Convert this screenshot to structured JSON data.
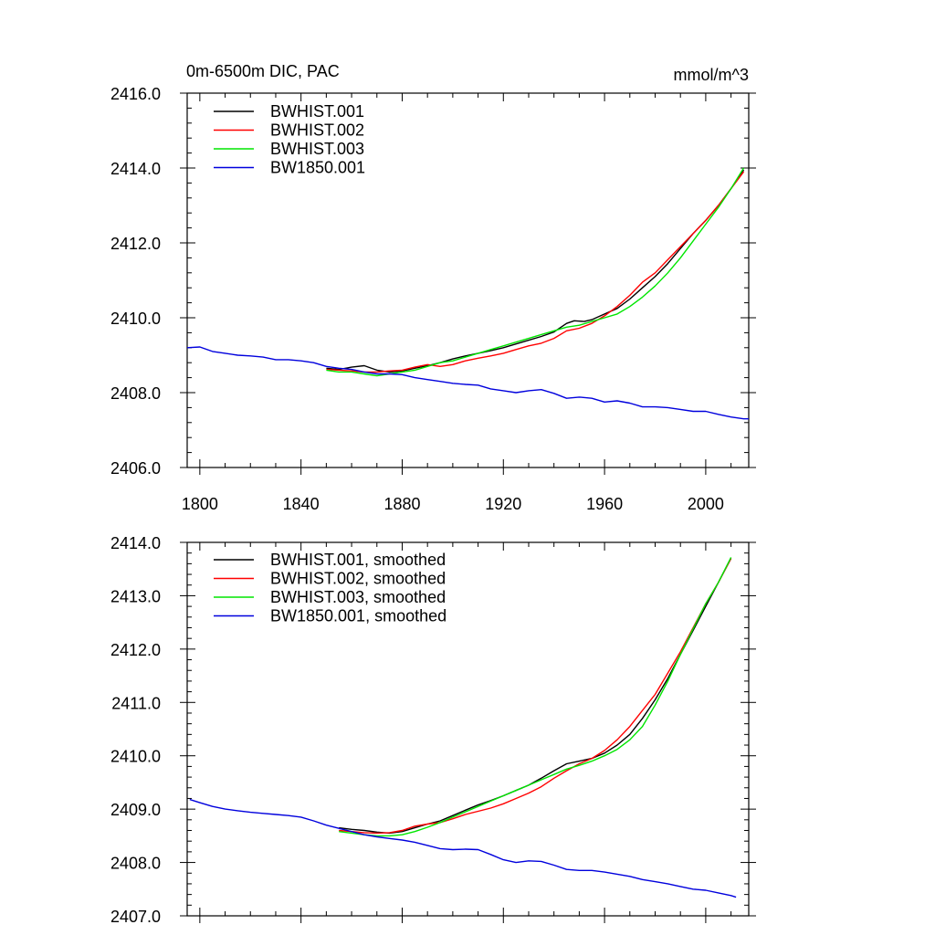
{
  "header": {
    "title": "0m-6500m DIC, PAC",
    "units": "mmol/m^3"
  },
  "chart_data": [
    {
      "type": "line",
      "title": "0m-6500m DIC, PAC",
      "units": "mmol/m^3",
      "xlim": [
        1795,
        2017
      ],
      "ylim": [
        2406.0,
        2416.0
      ],
      "xticks": [
        1800,
        1840,
        1880,
        1920,
        1960,
        2000
      ],
      "xtick_labels": [
        "1800",
        "1840",
        "1880",
        "1920",
        "1960",
        "2000"
      ],
      "yticks": [
        2406,
        2408,
        2410,
        2412,
        2414,
        2416
      ],
      "ytick_labels": [
        "2406.0",
        "2408.0",
        "2410.0",
        "2412.0",
        "2414.0",
        "2416.0"
      ],
      "grid": false,
      "legend_position": "top-left",
      "series": [
        {
          "name": "BWHIST.001",
          "color": "#000000",
          "x": [
            1850,
            1855,
            1860,
            1865,
            1870,
            1875,
            1880,
            1885,
            1890,
            1895,
            1900,
            1905,
            1910,
            1915,
            1920,
            1925,
            1930,
            1935,
            1940,
            1945,
            1948,
            1952,
            1955,
            1960,
            1965,
            1970,
            1975,
            1980,
            1985,
            1990,
            1995,
            2000,
            2005,
            2010,
            2015
          ],
          "y": [
            2408.65,
            2408.62,
            2408.68,
            2408.72,
            2408.6,
            2408.55,
            2408.58,
            2408.65,
            2408.72,
            2408.8,
            2408.9,
            2408.98,
            2409.05,
            2409.12,
            2409.2,
            2409.3,
            2409.4,
            2409.5,
            2409.62,
            2409.85,
            2409.92,
            2409.9,
            2409.95,
            2410.1,
            2410.25,
            2410.5,
            2410.8,
            2411.1,
            2411.45,
            2411.85,
            2412.25,
            2412.6,
            2413.0,
            2413.45,
            2413.95
          ]
        },
        {
          "name": "BWHIST.002",
          "color": "#ff0000",
          "x": [
            1850,
            1855,
            1860,
            1865,
            1870,
            1875,
            1880,
            1885,
            1890,
            1895,
            1900,
            1905,
            1910,
            1915,
            1920,
            1925,
            1930,
            1935,
            1940,
            1945,
            1950,
            1955,
            1960,
            1965,
            1970,
            1975,
            1980,
            1985,
            1990,
            1995,
            2000,
            2005,
            2010,
            2015
          ],
          "y": [
            2408.62,
            2408.6,
            2408.58,
            2408.55,
            2408.55,
            2408.58,
            2408.6,
            2408.68,
            2408.75,
            2408.7,
            2408.75,
            2408.85,
            2408.92,
            2408.98,
            2409.05,
            2409.15,
            2409.25,
            2409.32,
            2409.45,
            2409.65,
            2409.72,
            2409.85,
            2410.05,
            2410.3,
            2410.6,
            2410.95,
            2411.2,
            2411.55,
            2411.9,
            2412.25,
            2412.6,
            2413.0,
            2413.45,
            2413.9
          ]
        },
        {
          "name": "BWHIST.003",
          "color": "#00e600",
          "x": [
            1850,
            1855,
            1860,
            1865,
            1870,
            1875,
            1880,
            1885,
            1890,
            1895,
            1900,
            1905,
            1910,
            1915,
            1920,
            1925,
            1930,
            1935,
            1940,
            1945,
            1950,
            1955,
            1960,
            1965,
            1970,
            1975,
            1980,
            1985,
            1990,
            1995,
            2000,
            2005,
            2010,
            2015
          ],
          "y": [
            2408.6,
            2408.55,
            2408.55,
            2408.5,
            2408.45,
            2408.5,
            2408.55,
            2408.6,
            2408.7,
            2408.8,
            2408.85,
            2408.95,
            2409.05,
            2409.15,
            2409.25,
            2409.35,
            2409.45,
            2409.55,
            2409.65,
            2409.75,
            2409.8,
            2409.9,
            2410.0,
            2410.1,
            2410.3,
            2410.55,
            2410.85,
            2411.2,
            2411.6,
            2412.05,
            2412.5,
            2412.95,
            2413.45,
            2414.0
          ]
        },
        {
          "name": "BW1850.001",
          "color": "#0000dd",
          "x": [
            1795,
            1800,
            1805,
            1810,
            1815,
            1820,
            1825,
            1830,
            1835,
            1840,
            1845,
            1850,
            1855,
            1860,
            1865,
            1870,
            1875,
            1880,
            1885,
            1890,
            1895,
            1900,
            1905,
            1910,
            1915,
            1920,
            1925,
            1930,
            1935,
            1940,
            1945,
            1950,
            1955,
            1960,
            1965,
            1970,
            1975,
            1980,
            1985,
            1990,
            1995,
            2000,
            2005,
            2010,
            2015,
            2017
          ],
          "y": [
            2409.2,
            2409.22,
            2409.1,
            2409.05,
            2409.0,
            2408.98,
            2408.95,
            2408.88,
            2408.88,
            2408.85,
            2408.8,
            2408.7,
            2408.65,
            2408.62,
            2408.55,
            2408.5,
            2408.5,
            2408.48,
            2408.4,
            2408.35,
            2408.3,
            2408.25,
            2408.22,
            2408.2,
            2408.1,
            2408.05,
            2408.0,
            2408.05,
            2408.08,
            2407.98,
            2407.85,
            2407.88,
            2407.85,
            2407.75,
            2407.78,
            2407.72,
            2407.62,
            2407.62,
            2407.6,
            2407.55,
            2407.5,
            2407.5,
            2407.42,
            2407.35,
            2407.3,
            2407.3
          ]
        }
      ]
    },
    {
      "type": "line",
      "xlim": [
        1795,
        2017
      ],
      "ylim": [
        2407.0,
        2414.0
      ],
      "xticks": [
        1800,
        1840,
        1880,
        1920,
        1960,
        2000
      ],
      "yticks": [
        2407,
        2408,
        2409,
        2410,
        2411,
        2412,
        2413,
        2414
      ],
      "ytick_labels": [
        "2407.0",
        "2408.0",
        "2409.0",
        "2410.0",
        "2411.0",
        "2412.0",
        "2413.0",
        "2414.0"
      ],
      "grid": false,
      "legend_position": "top-left",
      "series": [
        {
          "name": "BWHIST.001, smoothed",
          "color": "#000000",
          "x": [
            1855,
            1860,
            1865,
            1870,
            1875,
            1880,
            1885,
            1890,
            1895,
            1900,
            1905,
            1910,
            1915,
            1920,
            1925,
            1930,
            1935,
            1940,
            1945,
            1950,
            1955,
            1960,
            1965,
            1970,
            1975,
            1980,
            1985,
            1990,
            1995,
            2000,
            2005,
            2010
          ],
          "y": [
            2408.65,
            2408.62,
            2408.6,
            2408.57,
            2408.55,
            2408.58,
            2408.65,
            2408.72,
            2408.78,
            2408.88,
            2408.98,
            2409.08,
            2409.16,
            2409.25,
            2409.35,
            2409.45,
            2409.58,
            2409.72,
            2409.85,
            2409.9,
            2409.95,
            2410.05,
            2410.2,
            2410.4,
            2410.7,
            2411.05,
            2411.45,
            2411.9,
            2412.35,
            2412.8,
            2413.25,
            2413.7
          ]
        },
        {
          "name": "BWHIST.002, smoothed",
          "color": "#ff0000",
          "x": [
            1855,
            1860,
            1865,
            1870,
            1875,
            1880,
            1885,
            1890,
            1895,
            1900,
            1905,
            1910,
            1915,
            1920,
            1925,
            1930,
            1935,
            1940,
            1945,
            1950,
            1955,
            1960,
            1965,
            1970,
            1975,
            1980,
            1985,
            1990,
            1995,
            2000,
            2005,
            2010
          ],
          "y": [
            2408.6,
            2408.58,
            2408.56,
            2408.55,
            2408.56,
            2408.6,
            2408.68,
            2408.72,
            2408.75,
            2408.82,
            2408.9,
            2408.96,
            2409.02,
            2409.1,
            2409.2,
            2409.3,
            2409.42,
            2409.58,
            2409.72,
            2409.85,
            2409.95,
            2410.1,
            2410.3,
            2410.55,
            2410.85,
            2411.15,
            2411.55,
            2411.95,
            2412.4,
            2412.85,
            2413.25,
            2413.7
          ]
        },
        {
          "name": "BWHIST.003, smoothed",
          "color": "#00e600",
          "x": [
            1855,
            1860,
            1865,
            1870,
            1875,
            1880,
            1885,
            1890,
            1895,
            1900,
            1905,
            1910,
            1915,
            1920,
            1925,
            1930,
            1935,
            1940,
            1945,
            1950,
            1955,
            1960,
            1965,
            1970,
            1975,
            1980,
            1985,
            1990,
            1995,
            2000,
            2005,
            2010
          ],
          "y": [
            2408.58,
            2408.55,
            2408.52,
            2408.5,
            2408.5,
            2408.52,
            2408.58,
            2408.66,
            2408.75,
            2408.85,
            2408.95,
            2409.05,
            2409.15,
            2409.25,
            2409.35,
            2409.45,
            2409.55,
            2409.65,
            2409.75,
            2409.82,
            2409.9,
            2410.0,
            2410.12,
            2410.3,
            2410.55,
            2410.95,
            2411.4,
            2411.9,
            2412.38,
            2412.85,
            2413.25,
            2413.72
          ]
        },
        {
          "name": "BW1850.001, smoothed",
          "color": "#0000dd",
          "x": [
            1796,
            1800,
            1805,
            1810,
            1815,
            1820,
            1825,
            1830,
            1835,
            1840,
            1845,
            1850,
            1855,
            1860,
            1865,
            1870,
            1875,
            1880,
            1885,
            1890,
            1895,
            1900,
            1905,
            1910,
            1915,
            1920,
            1925,
            1930,
            1935,
            1940,
            1945,
            1950,
            1955,
            1960,
            1965,
            1970,
            1975,
            1980,
            1985,
            1990,
            1995,
            2000,
            2005,
            2010,
            2012
          ],
          "y": [
            2409.18,
            2409.12,
            2409.05,
            2409.0,
            2408.97,
            2408.94,
            2408.92,
            2408.9,
            2408.88,
            2408.85,
            2408.78,
            2408.7,
            2408.64,
            2408.58,
            2408.52,
            2408.48,
            2408.45,
            2408.42,
            2408.38,
            2408.32,
            2408.26,
            2408.24,
            2408.25,
            2408.24,
            2408.15,
            2408.05,
            2408.0,
            2408.03,
            2408.02,
            2407.95,
            2407.87,
            2407.85,
            2407.85,
            2407.82,
            2407.78,
            2407.74,
            2407.68,
            2407.64,
            2407.6,
            2407.55,
            2407.5,
            2407.48,
            2407.43,
            2407.38,
            2407.35
          ]
        }
      ]
    }
  ]
}
